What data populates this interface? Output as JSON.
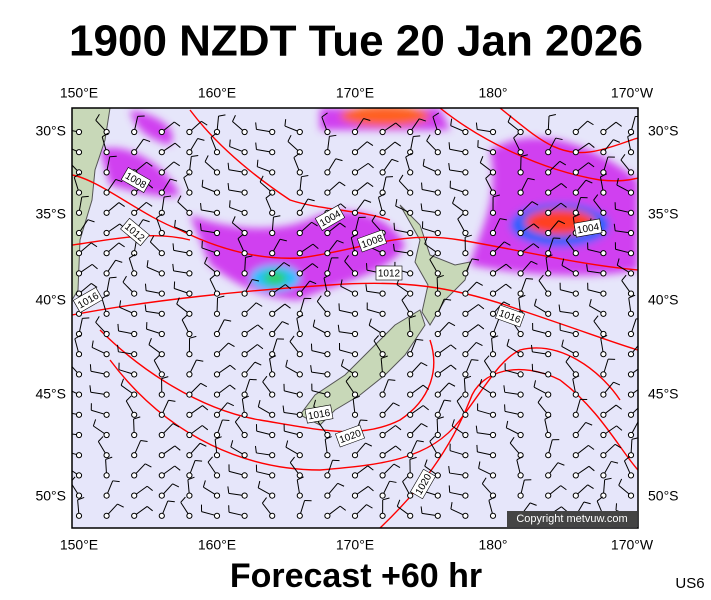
{
  "header": {
    "title": "1900 NZDT Tue 20 Jan 2026"
  },
  "map": {
    "top_longitudes": [
      "150°E",
      "160°E",
      "170°E",
      "180°",
      "170°W"
    ],
    "bottom_longitudes": [
      "150°E",
      "160°E",
      "170°E",
      "180°",
      "170°W"
    ],
    "left_latitudes": [
      "30°S",
      "35°S",
      "40°S",
      "45°S",
      "50°S"
    ],
    "right_latitudes": [
      "30°S",
      "35°S",
      "40°S",
      "45°S",
      "50°S"
    ],
    "contour_labels": [
      "1008",
      "1012",
      "1016",
      "1004",
      "1008",
      "1012",
      "1004",
      "1016",
      "1016",
      "1020",
      "1020"
    ],
    "copyright": "Copyright metvuw.com"
  },
  "footer": {
    "forecast": "Forecast +60 hr",
    "code": "US6"
  }
}
